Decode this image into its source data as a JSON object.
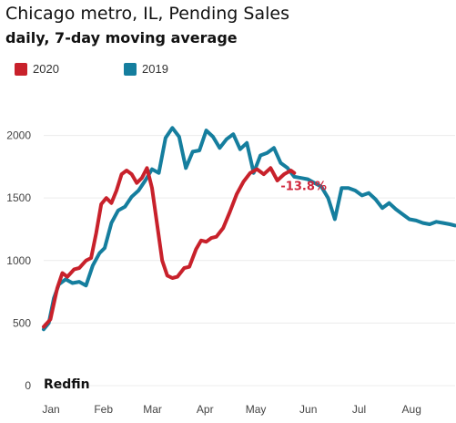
{
  "chart_data": {
    "type": "line",
    "title": "Chicago metro, IL, Pending Sales",
    "subtitle": "daily, 7-day moving average",
    "source": "Redfin",
    "legend_placement": "top-left",
    "grid": true,
    "ylim": [
      0,
      2150
    ],
    "yticks": [
      0,
      500,
      1000,
      1500,
      2000
    ],
    "xlim": [
      "2020-01-01",
      "2020-08-31"
    ],
    "xticks": [
      "Jan",
      "Feb",
      "Mar",
      "Apr",
      "May",
      "Jun",
      "Jul",
      "Aug"
    ],
    "xtick_dates": [
      "2020-01-01",
      "2020-02-01",
      "2020-03-01",
      "2020-04-01",
      "2020-05-01",
      "2020-06-01",
      "2020-07-01",
      "2020-08-01"
    ],
    "series": [
      {
        "name": "2020",
        "color": "#c8212b",
        "x": [
          "2020-01-01",
          "2020-01-05",
          "2020-01-09",
          "2020-01-12",
          "2020-01-15",
          "2020-01-19",
          "2020-01-22",
          "2020-01-26",
          "2020-01-29",
          "2020-02-01",
          "2020-02-04",
          "2020-02-07",
          "2020-02-10",
          "2020-02-13",
          "2020-02-16",
          "2020-02-19",
          "2020-02-22",
          "2020-02-25",
          "2020-02-28",
          "2020-03-02",
          "2020-03-05",
          "2020-03-08",
          "2020-03-11",
          "2020-03-14",
          "2020-03-17",
          "2020-03-20",
          "2020-03-24",
          "2020-03-27",
          "2020-03-31",
          "2020-04-03",
          "2020-04-06",
          "2020-04-09",
          "2020-04-12",
          "2020-04-16",
          "2020-04-20",
          "2020-04-24",
          "2020-04-28",
          "2020-05-02",
          "2020-05-06",
          "2020-05-10",
          "2020-05-14",
          "2020-05-18",
          "2020-05-22",
          "2020-05-26",
          "2020-05-28"
        ],
        "values": [
          470,
          530,
          780,
          900,
          870,
          930,
          940,
          1000,
          1020,
          1220,
          1450,
          1500,
          1460,
          1560,
          1690,
          1720,
          1690,
          1620,
          1660,
          1740,
          1580,
          1290,
          1000,
          880,
          860,
          870,
          940,
          950,
          1090,
          1160,
          1150,
          1180,
          1190,
          1260,
          1390,
          1530,
          1630,
          1700,
          1730,
          1690,
          1740,
          1640,
          1690,
          1720,
          1700
        ]
      },
      {
        "name": "2019",
        "color": "#157e9e",
        "x": [
          "2020-01-01",
          "2020-01-04",
          "2020-01-07",
          "2020-01-10",
          "2020-01-14",
          "2020-01-18",
          "2020-01-22",
          "2020-01-26",
          "2020-01-30",
          "2020-02-03",
          "2020-02-06",
          "2020-02-10",
          "2020-02-14",
          "2020-02-18",
          "2020-02-22",
          "2020-02-26",
          "2020-03-01",
          "2020-03-05",
          "2020-03-09",
          "2020-03-13",
          "2020-03-17",
          "2020-03-21",
          "2020-03-25",
          "2020-03-29",
          "2020-04-02",
          "2020-04-06",
          "2020-04-10",
          "2020-04-14",
          "2020-04-18",
          "2020-04-22",
          "2020-04-26",
          "2020-04-30",
          "2020-05-04",
          "2020-05-08",
          "2020-05-12",
          "2020-05-16",
          "2020-05-20",
          "2020-05-24",
          "2020-05-28",
          "2020-06-01",
          "2020-06-05",
          "2020-06-09",
          "2020-06-13",
          "2020-06-17",
          "2020-06-21",
          "2020-06-25",
          "2020-06-29",
          "2020-07-03",
          "2020-07-07",
          "2020-07-11",
          "2020-07-15",
          "2020-07-19",
          "2020-07-23",
          "2020-07-27",
          "2020-07-31",
          "2020-08-04",
          "2020-08-08",
          "2020-08-12",
          "2020-08-16",
          "2020-08-20",
          "2020-08-24",
          "2020-08-28",
          "2020-08-31"
        ],
        "values": [
          450,
          500,
          700,
          810,
          850,
          820,
          830,
          800,
          960,
          1060,
          1100,
          1300,
          1400,
          1430,
          1510,
          1560,
          1640,
          1730,
          1700,
          1980,
          2060,
          1990,
          1740,
          1870,
          1880,
          2040,
          1990,
          1900,
          1970,
          2010,
          1890,
          1940,
          1700,
          1840,
          1860,
          1900,
          1780,
          1740,
          1670,
          1660,
          1650,
          1620,
          1590,
          1500,
          1330,
          1580,
          1580,
          1560,
          1520,
          1540,
          1490,
          1420,
          1460,
          1410,
          1370,
          1330,
          1320,
          1300,
          1290,
          1310,
          1300,
          1290,
          1280
        ]
      }
    ],
    "annotations": [
      {
        "text": "-13.8%",
        "x": "2020-05-20",
        "y": 1600,
        "color": "#d0263c"
      }
    ]
  }
}
